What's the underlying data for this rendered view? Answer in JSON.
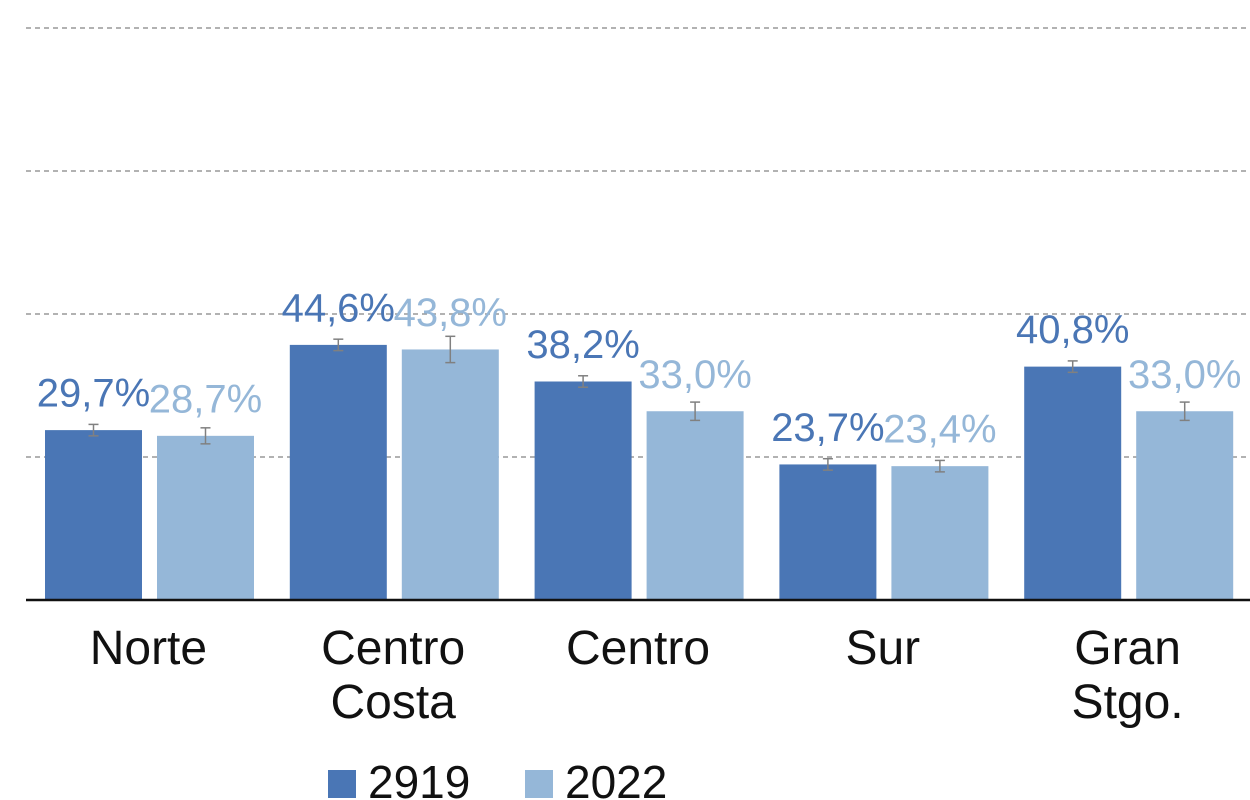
{
  "chart_data": {
    "type": "bar",
    "categories": [
      "Norte",
      "Centro Costa",
      "Centro",
      "Sur",
      "Gran Stgo."
    ],
    "series": [
      {
        "name": "2919",
        "color": "#4a76b5",
        "values": [
          29.7,
          44.6,
          38.2,
          23.7,
          40.8
        ],
        "value_labels": [
          "29,7%",
          "44,6%",
          "38,2%",
          "23,7%",
          "40,8%"
        ],
        "errors": [
          1.0,
          1.0,
          1.0,
          1.0,
          1.0
        ]
      },
      {
        "name": "2022",
        "color": "#95b7d8",
        "values": [
          28.7,
          43.8,
          33.0,
          23.4,
          33.0
        ],
        "value_labels": [
          "28,7%",
          "43,8%",
          "33,0%",
          "23,4%",
          "33,0%"
        ],
        "errors": [
          1.4,
          2.3,
          1.6,
          1.0,
          1.6
        ]
      }
    ],
    "ylim": [
      0,
      100
    ],
    "yticks": [
      0,
      25,
      50,
      75,
      100
    ],
    "grid": true
  }
}
